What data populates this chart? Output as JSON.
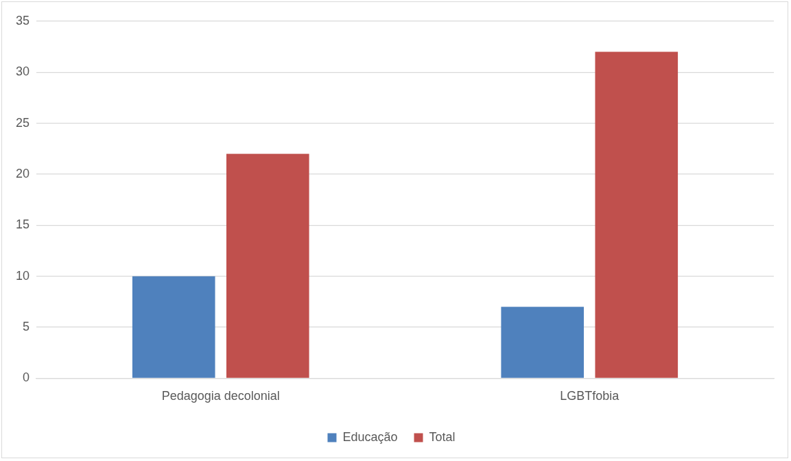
{
  "chart_data": {
    "type": "bar",
    "categories": [
      "Pedagogia decolonial",
      "LGBTfobia"
    ],
    "series": [
      {
        "name": "Educação",
        "color": "#4f81bd",
        "values": [
          10,
          7
        ]
      },
      {
        "name": "Total",
        "color": "#c0504d",
        "values": [
          22,
          32
        ]
      }
    ],
    "ylim": [
      0,
      35
    ],
    "yticks": [
      0,
      5,
      10,
      15,
      20,
      25,
      30,
      35
    ],
    "grid": "y",
    "legend": "bottom"
  }
}
